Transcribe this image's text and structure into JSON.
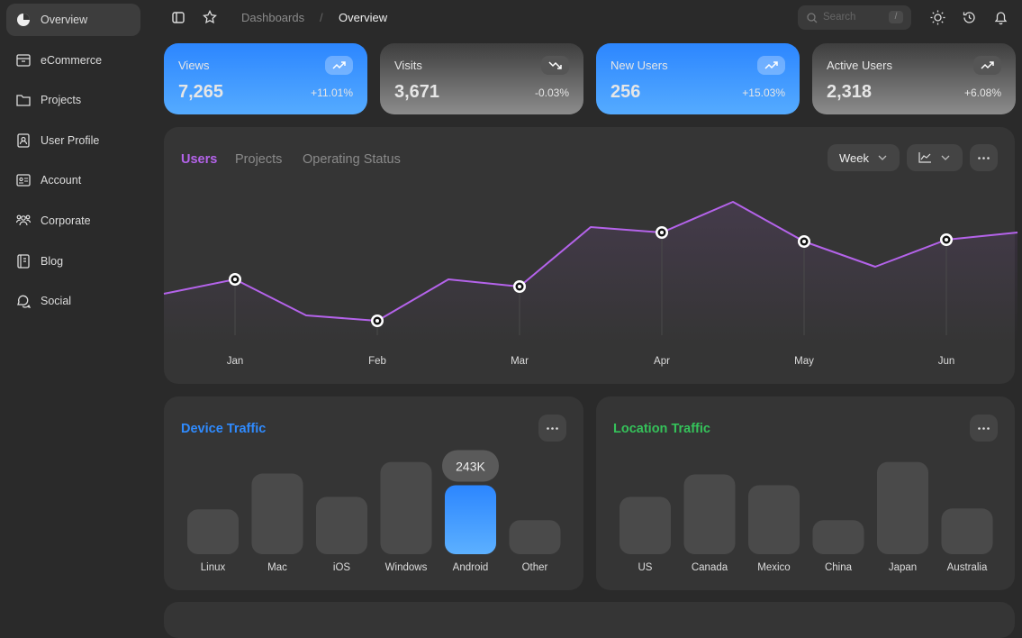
{
  "sidebar": {
    "items": [
      "Overview",
      "eCommerce",
      "Projects",
      "User Profile",
      "Account",
      "Corporate",
      "Blog",
      "Social"
    ],
    "active": 0
  },
  "breadcrumb": {
    "items": [
      "Dashboards",
      "Overview"
    ],
    "separator": "/"
  },
  "search": {
    "placeholder": "Search",
    "shortcut": "/"
  },
  "stats": [
    {
      "label": "Views",
      "value": "7,265",
      "change": "+11.01%",
      "style": "blue",
      "trend": "up"
    },
    {
      "label": "Visits",
      "value": "3,671",
      "change": "-0.03%",
      "style": "grey",
      "trend": "down"
    },
    {
      "label": "New Users",
      "value": "256",
      "change": "+15.03%",
      "style": "blue",
      "trend": "up"
    },
    {
      "label": "Active Users",
      "value": "2,318",
      "change": "+6.08%",
      "style": "grey",
      "trend": "up"
    }
  ],
  "chart_data": [
    {
      "type": "line",
      "tabs": [
        "Users",
        "Projects",
        "Operating Status"
      ],
      "active_tab": 0,
      "period": "Week",
      "categories": [
        null,
        "Jan",
        null,
        "Feb",
        null,
        "Mar",
        null,
        "Apr",
        null,
        "May",
        null,
        "Jun",
        null
      ],
      "values": [
        32,
        40,
        20,
        17,
        40,
        36,
        69,
        66,
        83,
        61,
        47,
        62,
        66
      ],
      "color": "#b463ea",
      "ylim": [
        0,
        100
      ]
    },
    {
      "type": "bar",
      "title": "Device Traffic",
      "title_color": "#2f8bff",
      "categories": [
        "Linux",
        "Mac",
        "iOS",
        "Windows",
        "Android",
        "Other"
      ],
      "values": [
        158000,
        284000,
        202000,
        325000,
        243000,
        120000
      ],
      "value_labels": [
        null,
        null,
        null,
        null,
        "243K",
        null
      ],
      "color": "#4a4a4a",
      "highlight": 4,
      "highlight_color": "#3a9cff",
      "ylim": [
        0,
        400000
      ]
    },
    {
      "type": "bar",
      "title": "Location Traffic",
      "title_color": "#35c25a",
      "categories": [
        "US",
        "Canada",
        "Mexico",
        "China",
        "Japan",
        "Australia"
      ],
      "values": [
        202000,
        281000,
        243000,
        120000,
        325000,
        161000
      ],
      "color": "#4a4a4a",
      "ylim": [
        0,
        400000
      ]
    }
  ]
}
